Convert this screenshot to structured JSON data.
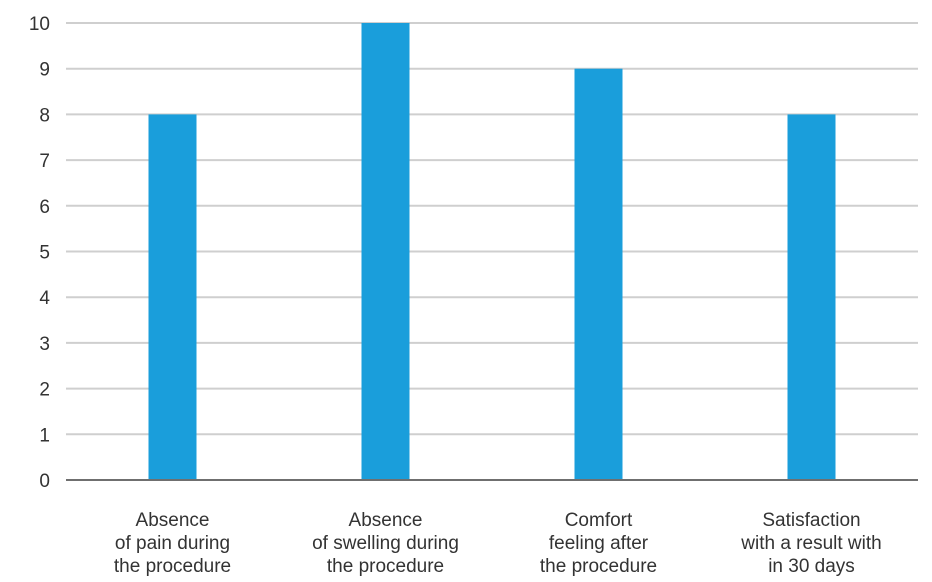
{
  "chart_data": {
    "type": "bar",
    "categories": [
      [
        "Absence",
        "of pain during",
        "the procedure"
      ],
      [
        "Absence",
        "of swelling during",
        "the procedure"
      ],
      [
        "Comfort",
        "feeling after",
        "the procedure"
      ],
      [
        "Satisfaction",
        "with a result with",
        "in 30 days"
      ]
    ],
    "values": [
      8,
      10,
      9,
      8
    ],
    "title": "",
    "xlabel": "",
    "ylabel": "",
    "ylim": [
      0,
      10
    ],
    "yticks": [
      "0",
      "1",
      "2",
      "3",
      "4",
      "5",
      "6",
      "7",
      "8",
      "9",
      "10"
    ],
    "grid": true,
    "legend": "none",
    "colors": {
      "bar": "#1a9edb",
      "grid": "#cfcfcf",
      "axis": "#6f6f6f",
      "text": "#333333"
    }
  }
}
